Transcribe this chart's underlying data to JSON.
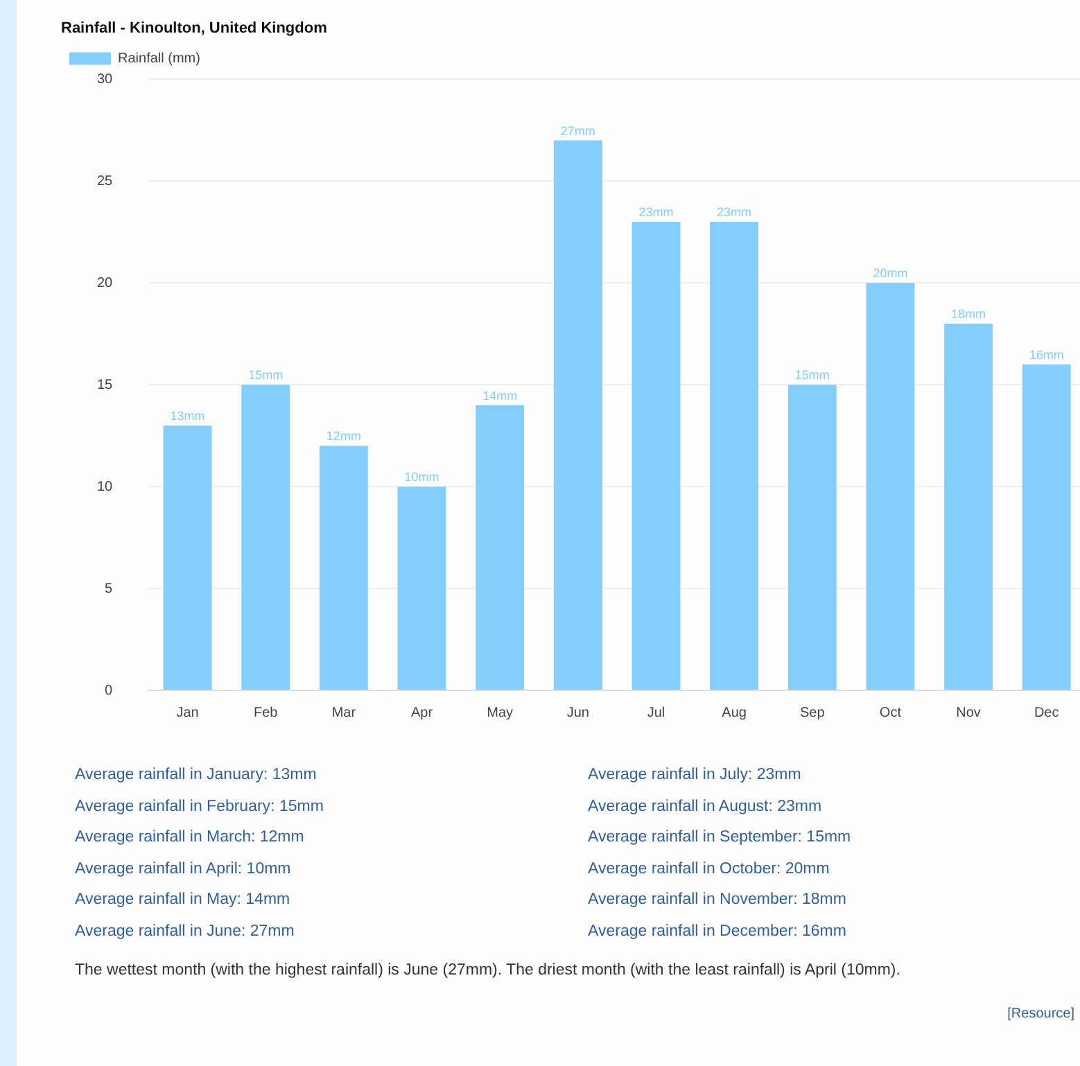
{
  "chart_data": {
    "type": "bar",
    "title": "Rainfall - Kinoulton, United Kingdom",
    "categories": [
      "Jan",
      "Feb",
      "Mar",
      "Apr",
      "May",
      "Jun",
      "Jul",
      "Aug",
      "Sep",
      "Oct",
      "Nov",
      "Dec"
    ],
    "series": [
      {
        "name": "Rainfall (mm)",
        "color": "#85cdfb",
        "values": [
          13,
          15,
          12,
          10,
          14,
          27,
          23,
          23,
          15,
          20,
          18,
          16
        ],
        "value_labels": [
          "13mm",
          "15mm",
          "12mm",
          "10mm",
          "14mm",
          "27mm",
          "23mm",
          "23mm",
          "15mm",
          "20mm",
          "18mm",
          "16mm"
        ]
      }
    ],
    "ylim": [
      0,
      30
    ],
    "yticks": [
      0,
      5,
      10,
      15,
      20,
      25,
      30
    ],
    "grid": "y",
    "legend": "top left",
    "annotations": [
      "Average rainfall in January: 13mm",
      "Average rainfall in February: 15mm",
      "Average rainfall in March: 12mm",
      "Average rainfall in April: 10mm",
      "Average rainfall in May: 14mm",
      "Average rainfall in June: 27mm",
      "Average rainfall in July: 23mm",
      "Average rainfall in August: 23mm",
      "Average rainfall in September: 15mm",
      "Average rainfall in October: 20mm",
      "Average rainfall in November: 18mm",
      "Average rainfall in December: 16mm",
      "The wettest month (with the highest rainfall) is June (27mm). The driest month (with the least rainfall) is April (10mm).",
      "[Resource]"
    ]
  }
}
